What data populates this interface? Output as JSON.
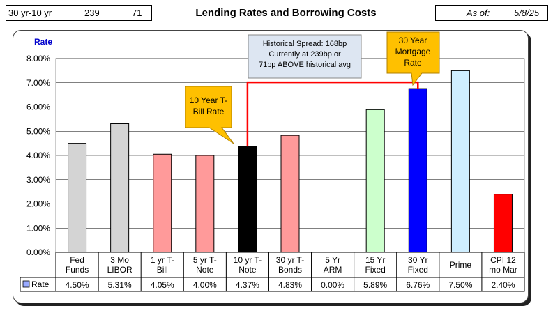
{
  "spread": {
    "label": "30 yr-10 yr",
    "current": "239",
    "above": "71"
  },
  "title": "Lending Rates and Borrowing Costs",
  "as_of": {
    "label": "As of:",
    "date": "5/8/25"
  },
  "callouts": {
    "hist": [
      "Historical Spread: 168bp",
      "Currently at 239bp  or",
      "71bp ABOVE historical avg"
    ],
    "tbill": [
      "10 Year T-",
      "Bill Rate"
    ],
    "mortgage": [
      "30 Year",
      "Mortgage",
      "Rate"
    ]
  },
  "chart_data": {
    "type": "bar",
    "ylabel": "Rate",
    "ylim": [
      0,
      8
    ],
    "yticks": [
      "0.00%",
      "1.00%",
      "2.00%",
      "3.00%",
      "4.00%",
      "5.00%",
      "6.00%",
      "7.00%",
      "8.00%"
    ],
    "grid": true,
    "categories": [
      [
        "Fed",
        "Funds"
      ],
      [
        "3 Mo",
        "LIBOR"
      ],
      [
        "1 yr  T-",
        "Bill"
      ],
      [
        "5 yr T-",
        "Note"
      ],
      [
        "10 yr T-",
        "Note"
      ],
      [
        "30 yr T-",
        "Bonds"
      ],
      [
        "5 Yr",
        "ARM"
      ],
      [
        "15 Yr",
        "Fixed"
      ],
      [
        "30 Yr",
        "Fixed"
      ],
      [
        "Prime"
      ],
      [
        "CPI 12",
        "mo Mar"
      ]
    ],
    "series": [
      {
        "name": "Rate",
        "values": [
          4.5,
          5.31,
          4.05,
          4.0,
          4.37,
          4.83,
          0.0,
          5.89,
          6.76,
          7.5,
          2.4
        ]
      }
    ],
    "value_labels": [
      "4.50%",
      "5.31%",
      "4.05%",
      "4.00%",
      "4.37%",
      "4.83%",
      "0.00%",
      "5.89%",
      "6.76%",
      "7.50%",
      "2.40%"
    ],
    "bar_colors": [
      "#d4d4d4",
      "#d4d4d4",
      "#ff9a9a",
      "#ff9a9a",
      "#000000",
      "#ff9a9a",
      "#ff9a9a",
      "#ccffcc",
      "#0000ff",
      "#cfeeff",
      "#ff0000"
    ],
    "legend_color": "#99aaff",
    "spread_line_color": "#ff0000"
  }
}
